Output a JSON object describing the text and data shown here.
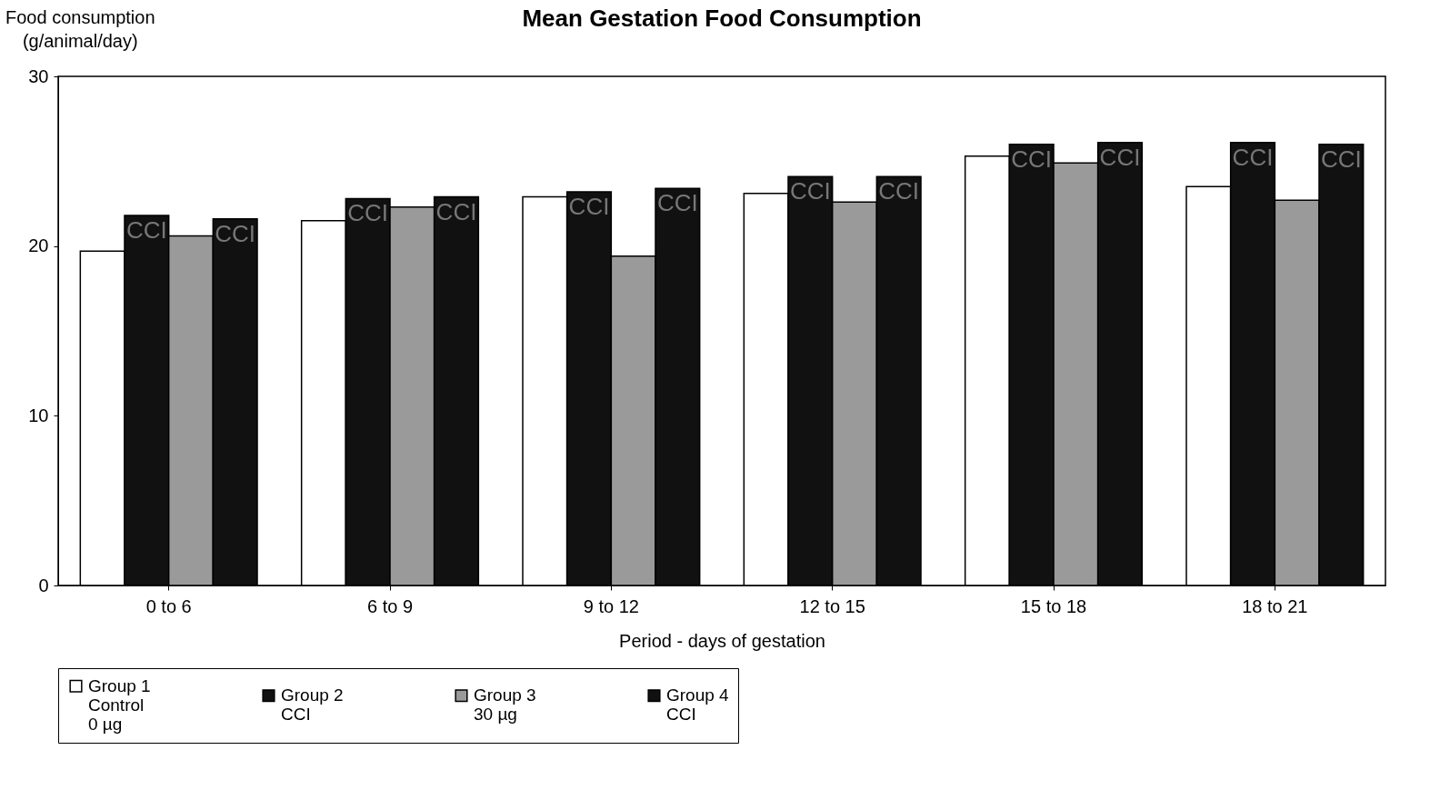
{
  "chart_data": {
    "type": "bar",
    "title": "Mean Gestation Food Consumption",
    "ylabel": "Food consumption\n(g/animal/day)",
    "xlabel": "Period - days of gestation",
    "categories": [
      "0 to 6",
      "6 to 9",
      "9 to 12",
      "12 to 15",
      "15 to 18",
      "18 to 21"
    ],
    "series": [
      {
        "name": "Group 1\nControl\n0 µg",
        "color": "#ffffff",
        "values": [
          19.7,
          21.5,
          22.9,
          23.1,
          25.3,
          23.5
        ]
      },
      {
        "name": "Group 2\nCCI",
        "color": "#111111",
        "values": [
          21.8,
          22.8,
          23.2,
          24.1,
          26.0,
          26.1
        ],
        "value_labels": [
          "CCI",
          "CCI",
          "CCI",
          "CCI",
          "CCI",
          "CCI"
        ]
      },
      {
        "name": "Group 3\n30 µg",
        "color": "#9a9a9a",
        "values": [
          20.6,
          22.3,
          19.4,
          22.6,
          24.9,
          22.7
        ]
      },
      {
        "name": "Group 4\nCCI",
        "color": "#111111",
        "values": [
          21.6,
          22.9,
          23.4,
          24.1,
          26.1,
          26.0
        ],
        "value_labels": [
          "CCI",
          "CCI",
          "CCI",
          "CCI",
          "CCI",
          "CCI"
        ]
      }
    ],
    "ylim": [
      0,
      30
    ],
    "yticks": [
      0,
      10,
      20,
      30
    ],
    "grid": false,
    "legend": "bottom"
  }
}
